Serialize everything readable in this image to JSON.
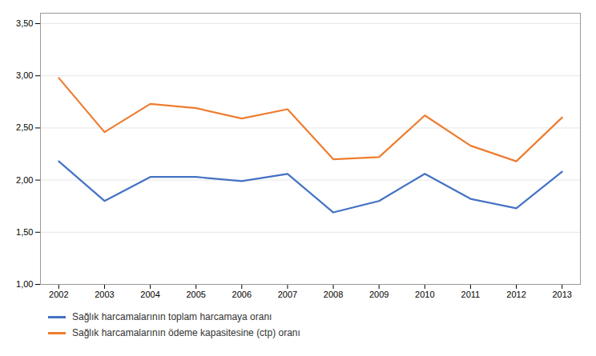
{
  "chart_data": {
    "type": "line",
    "x": [
      2002,
      2003,
      2004,
      2005,
      2006,
      2007,
      2008,
      2009,
      2010,
      2011,
      2012,
      2013
    ],
    "series": [
      {
        "name": "Sağlık harcamalarının toplam harcamaya oranı",
        "color": "#4472C4",
        "values": [
          2.18,
          1.8,
          2.03,
          2.03,
          1.99,
          2.06,
          1.69,
          1.8,
          2.06,
          1.82,
          1.73,
          2.08
        ]
      },
      {
        "name": "Sağlık harcamalarının ödeme kapasitesine (ctp) oranı",
        "color": "#ED7D31",
        "values": [
          2.98,
          2.46,
          2.73,
          2.69,
          2.59,
          2.68,
          2.2,
          2.22,
          2.62,
          2.33,
          2.18,
          2.6
        ]
      }
    ],
    "xlim": [
      2001.6,
      2013.4
    ],
    "xticks": [
      2002,
      2003,
      2004,
      2005,
      2006,
      2007,
      2008,
      2009,
      2010,
      2011,
      2012,
      2013
    ],
    "ylim": [
      1.0,
      3.6
    ],
    "yticks": [
      {
        "value": 1.0,
        "label": "1,00"
      },
      {
        "value": 1.5,
        "label": "1,50"
      },
      {
        "value": 2.0,
        "label": "2,00"
      },
      {
        "value": 2.5,
        "label": "2,50"
      },
      {
        "value": 3.0,
        "label": "3,00"
      },
      {
        "value": 3.5,
        "label": "3,50"
      }
    ],
    "grid": true,
    "legend": "bottom"
  }
}
